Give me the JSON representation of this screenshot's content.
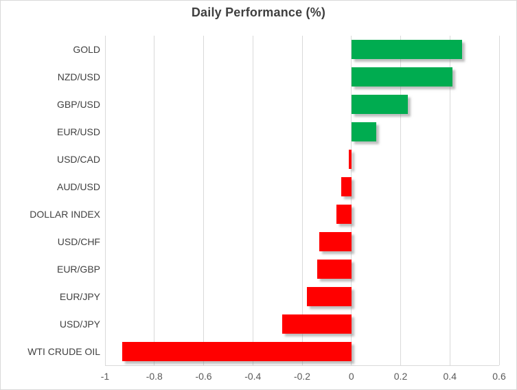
{
  "chart_data": {
    "type": "bar",
    "orientation": "horizontal",
    "title": "Daily Performance (%)",
    "categories": [
      "GOLD",
      "NZD/USD",
      "GBP/USD",
      "EUR/USD",
      "USD/CAD",
      "AUD/USD",
      "DOLLAR INDEX",
      "USD/CHF",
      "EUR/GBP",
      "EUR/JPY",
      "USD/JPY",
      "WTI CRUDE OIL"
    ],
    "values": [
      0.45,
      0.41,
      0.23,
      0.1,
      -0.01,
      -0.04,
      -0.06,
      -0.13,
      -0.14,
      -0.18,
      -0.28,
      -0.93
    ],
    "xlim": [
      -1,
      0.6
    ],
    "xticks": [
      -1,
      -0.8,
      -0.6,
      -0.4,
      -0.2,
      0,
      0.2,
      0.4,
      0.6
    ],
    "xtick_labels": [
      "-1",
      "-0.8",
      "-0.6",
      "-0.4",
      "-0.2",
      "0",
      "0.2",
      "0.4",
      "0.6"
    ],
    "grid": true,
    "legend": false,
    "value_sign_coloring": "positive green, negative red"
  },
  "colors": {
    "positive": "#00AC50",
    "negative": "#FF0000",
    "gridline": "#D9D9D9",
    "title_text": "#3F3F3F",
    "category_text": "#404040",
    "tick_text": "#595959"
  }
}
